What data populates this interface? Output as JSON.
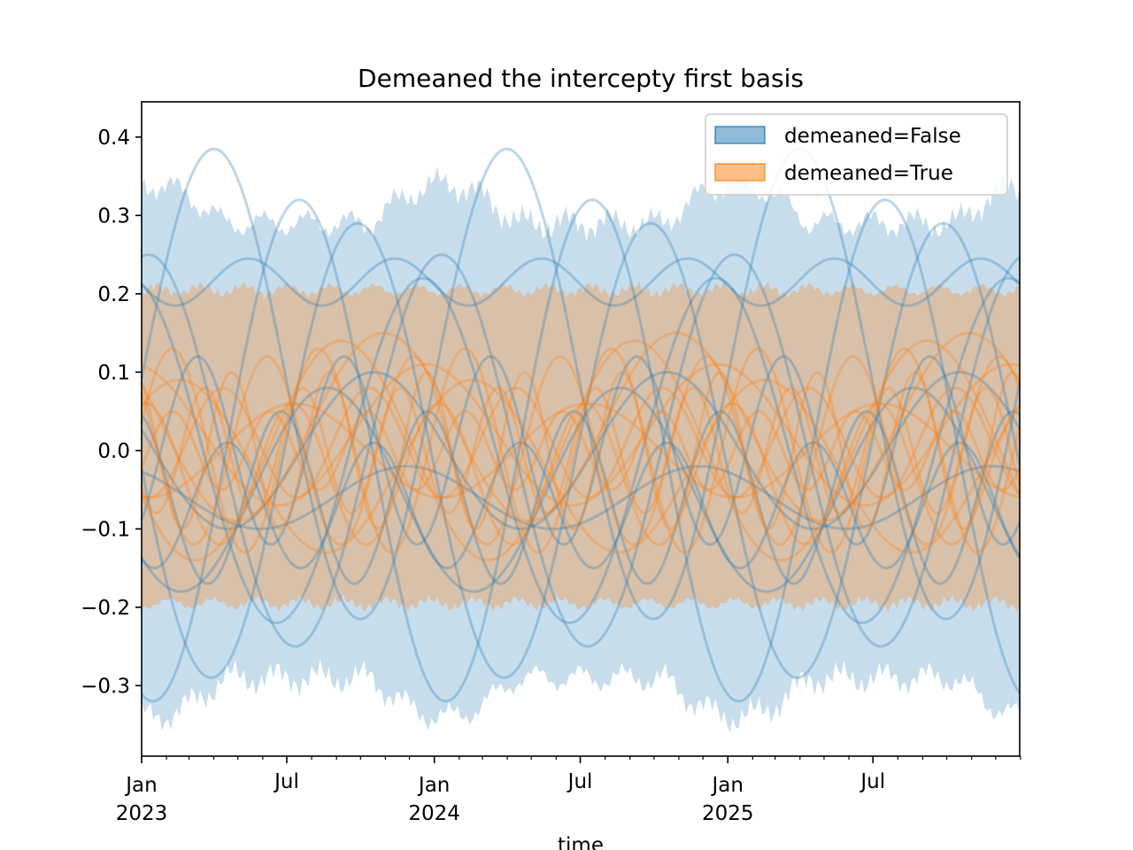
{
  "chart_data": {
    "type": "area",
    "title": "Demeaned the intercepty first basis",
    "xlabel": "time",
    "ylabel": "",
    "ylim": [
      -0.39,
      0.445
    ],
    "x_range": [
      "2023-01-01",
      "2025-12-31"
    ],
    "y_ticks": [
      -0.3,
      -0.2,
      -0.1,
      0.0,
      0.1,
      0.2,
      0.3,
      0.4
    ],
    "y_tick_labels": [
      "−0.3",
      "−0.2",
      "−0.1",
      "0.0",
      "0.1",
      "0.2",
      "0.3",
      "0.4"
    ],
    "x_ticks": [
      {
        "date": "2023-01-01",
        "line1": "Jan",
        "line2": "2023"
      },
      {
        "date": "2023-07-01",
        "line1": "Jul",
        "line2": ""
      },
      {
        "date": "2024-01-01",
        "line1": "Jan",
        "line2": "2024"
      },
      {
        "date": "2024-07-01",
        "line1": "Jul",
        "line2": ""
      },
      {
        "date": "2025-01-01",
        "line1": "Jan",
        "line2": "2025"
      },
      {
        "date": "2025-07-01",
        "line1": "Jul",
        "line2": ""
      }
    ],
    "legend": {
      "placement": "upper right",
      "entries": [
        {
          "label": "demeaned=False",
          "color": "#1f77b4"
        },
        {
          "label": "demeaned=True",
          "color": "#ff7f0e"
        }
      ]
    },
    "period_days": 365.25,
    "series": [
      {
        "name": "demeaned=False",
        "color": "#1f77b4",
        "band_upper_base": 0.29,
        "band_lower_base": -0.29,
        "band_peak_amplitude": 0.05,
        "band_noise": 0.025,
        "curves": [
          {
            "offset": 0.085,
            "terms": [
              [
                1,
                0.3,
                -1.55
              ]
            ]
          },
          {
            "offset": 0.0,
            "terms": [
              [
                1,
                0.32,
                2.9
              ]
            ]
          },
          {
            "offset": 0.0,
            "terms": [
              [
                1,
                0.29,
                1.65
              ]
            ]
          },
          {
            "offset": 0.0,
            "terms": [
              [
                1,
                0.22,
                0.25
              ]
            ]
          },
          {
            "offset": 0.215,
            "terms": [
              [
                2,
                0.03,
                1.7
              ]
            ]
          },
          {
            "offset": 0.0,
            "terms": [
              [
                1,
                0.25,
                -0.15
              ]
            ]
          },
          {
            "offset": -0.05,
            "terms": [
              [
                1,
                0.13,
                2.3
              ]
            ]
          },
          {
            "offset": -0.06,
            "terms": [
              [
                2,
                0.11,
                0.3
              ]
            ]
          },
          {
            "offset": -0.07,
            "terms": [
              [
                2,
                0.08,
                2.6
              ]
            ]
          },
          {
            "offset": 0.0,
            "terms": [
              [
                2,
                0.12,
                -2.4
              ]
            ]
          },
          {
            "offset": -0.06,
            "terms": [
              [
                1,
                0.04,
                0.6
              ]
            ]
          },
          {
            "offset": 0.0,
            "terms": [
              [
                1,
                0.1,
                1.3
              ]
            ]
          }
        ]
      },
      {
        "name": "demeaned=True",
        "color": "#ff7f0e",
        "band_upper_base": 0.205,
        "band_lower_base": -0.195,
        "band_peak_amplitude": 0.0,
        "band_noise": 0.012,
        "curves": [
          {
            "offset": 0.0,
            "terms": [
              [
                1,
                0.14,
                2.0
              ]
            ]
          },
          {
            "offset": 0.0,
            "terms": [
              [
                2,
                0.12,
                0.9
              ]
            ]
          },
          {
            "offset": 0.0,
            "terms": [
              [
                2,
                0.13,
                -1.3
              ]
            ]
          },
          {
            "offset": 0.02,
            "terms": [
              [
                1,
                0.09,
                0.2
              ]
            ]
          },
          {
            "offset": -0.02,
            "terms": [
              [
                1,
                0.11,
                -0.8
              ]
            ]
          },
          {
            "offset": 0.0,
            "terms": [
              [
                3,
                0.1,
                0.5
              ]
            ]
          },
          {
            "offset": 0.0,
            "terms": [
              [
                3,
                0.08,
                2.2
              ]
            ]
          },
          {
            "offset": 0.01,
            "terms": [
              [
                2,
                0.07,
                2.8
              ]
            ]
          },
          {
            "offset": 0.0,
            "terms": [
              [
                1,
                0.06,
                3.0
              ]
            ]
          },
          {
            "offset": -0.03,
            "terms": [
              [
                2,
                0.09,
                -0.2
              ]
            ]
          },
          {
            "offset": 0.03,
            "terms": [
              [
                1,
                0.12,
                1.1
              ]
            ]
          },
          {
            "offset": 0.0,
            "terms": [
              [
                3,
                0.05,
                -2.0
              ]
            ]
          }
        ]
      }
    ]
  }
}
